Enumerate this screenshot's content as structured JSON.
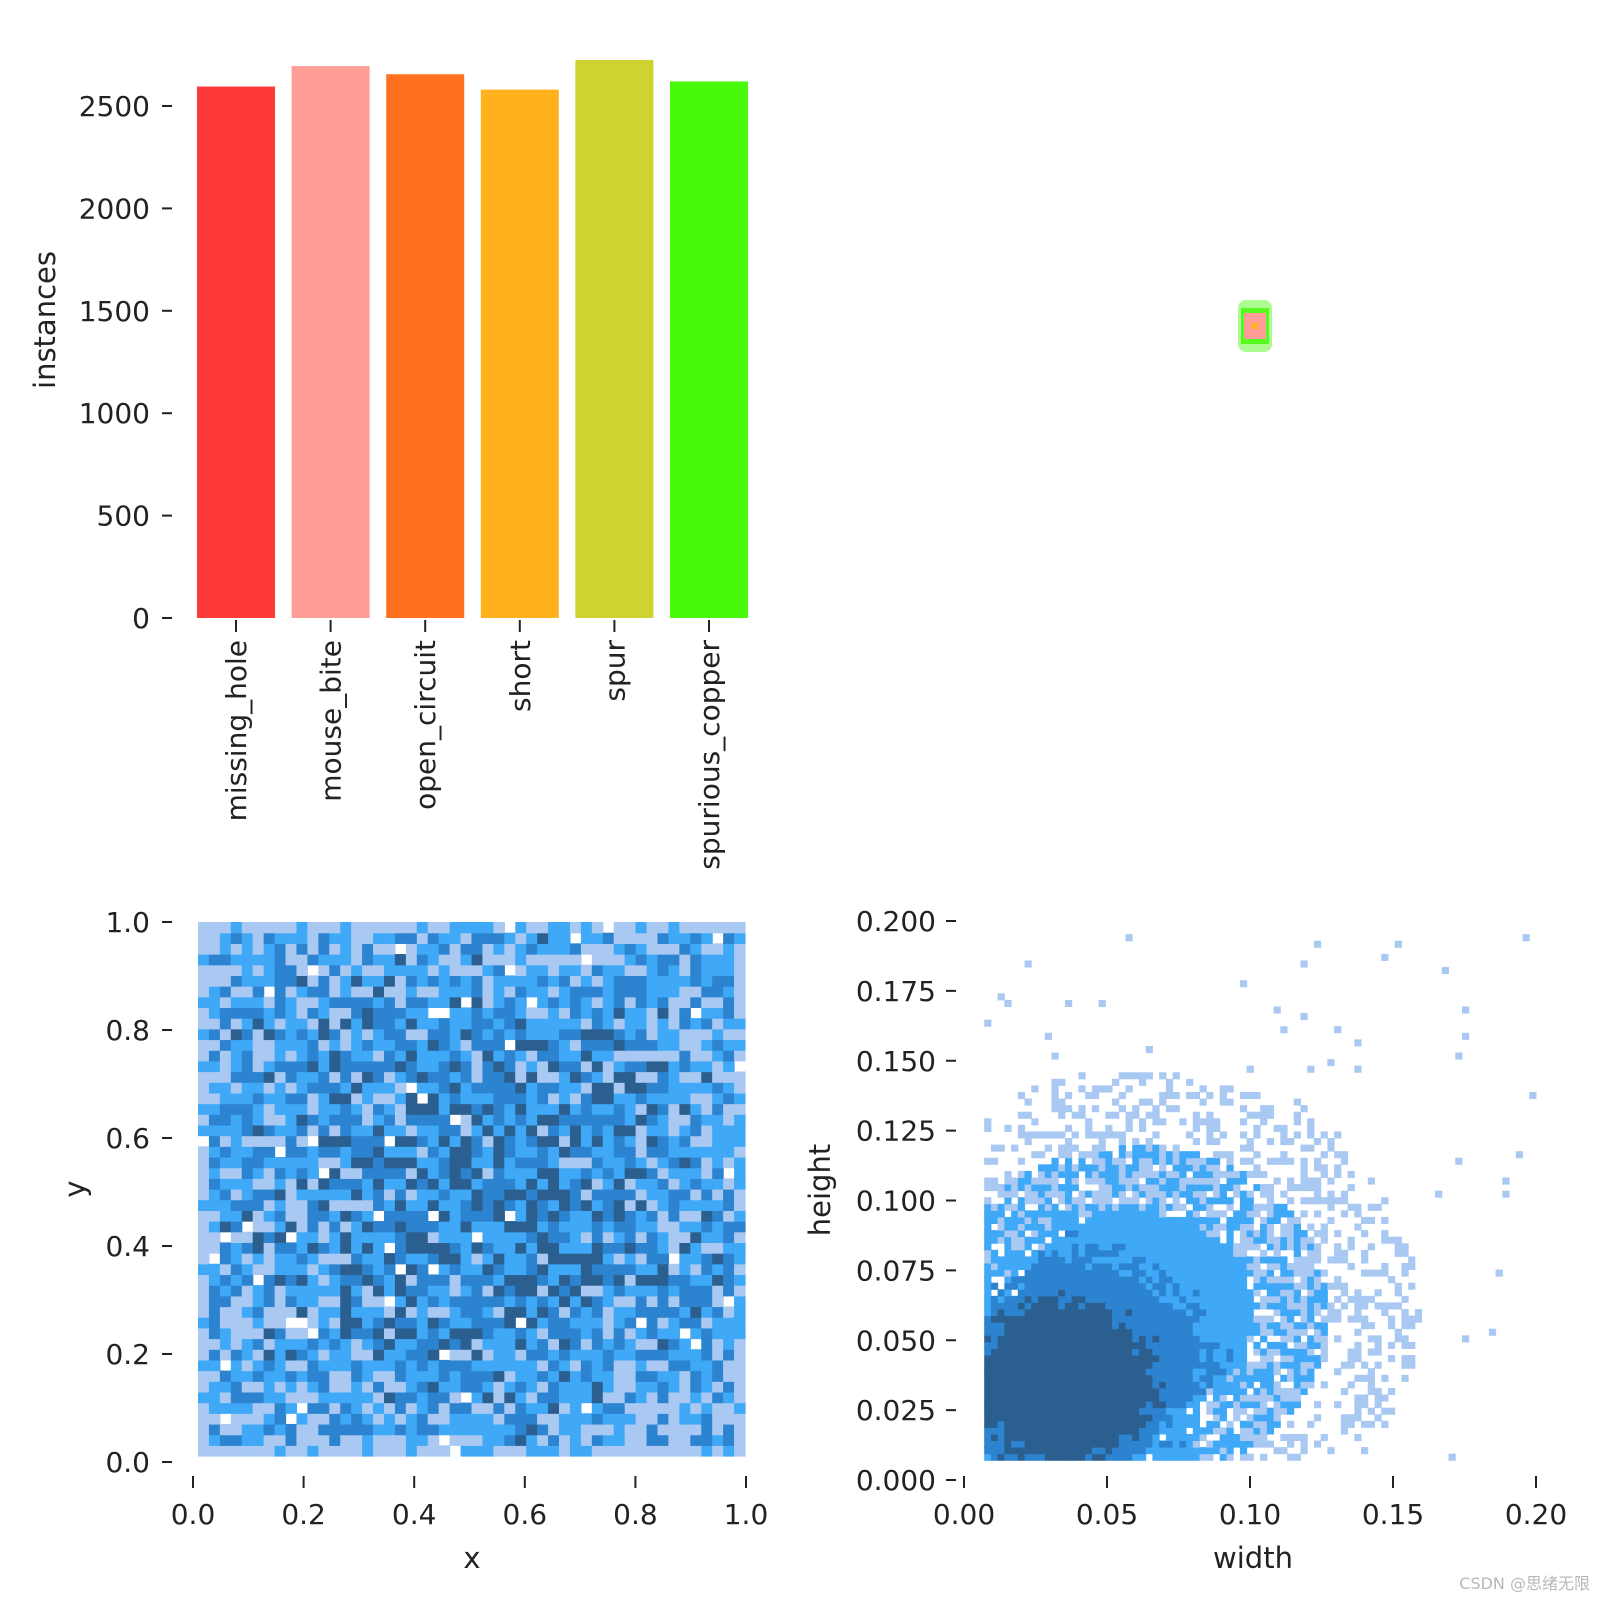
{
  "chart_data": [
    {
      "type": "bar",
      "ylabel": "instances",
      "ylim": [
        0,
        2750
      ],
      "yticks": [
        "0",
        "500",
        "1000",
        "1500",
        "2000",
        "2500"
      ],
      "categories": [
        "missing_hole",
        "mouse_bite",
        "open_circuit",
        "short",
        "spur",
        "spurious_copper"
      ],
      "values": [
        2595,
        2695,
        2655,
        2580,
        2725,
        2620
      ],
      "colors": [
        "#ff3838",
        "#ff9d97",
        "#ff701f",
        "#ffb21d",
        "#cfd231",
        "#48f90a"
      ]
    },
    {
      "type": "scatter",
      "title": "",
      "center": {
        "x": 0.5,
        "y": 0.5
      },
      "box_colors": [
        "#48f90a",
        "#ff9d97",
        "#ffb21d"
      ]
    },
    {
      "type": "heatmap",
      "xlabel": "x",
      "ylabel": "y",
      "xlim": [
        0,
        1
      ],
      "ylim": [
        0,
        1
      ],
      "xticks": [
        "0.0",
        "0.2",
        "0.4",
        "0.6",
        "0.8",
        "1.0"
      ],
      "yticks": [
        "0.0",
        "0.2",
        "0.4",
        "0.6",
        "0.8",
        "1.0"
      ],
      "bins": 50,
      "distribution": "approximately uniform over [0,1]x[0,1], slightly denser at center",
      "colors": [
        "#a9c9f3",
        "#3fa8f7",
        "#2c83d0",
        "#2b5f8f"
      ]
    },
    {
      "type": "heatmap",
      "xlabel": "width",
      "ylabel": "height",
      "xlim": [
        0,
        0.2
      ],
      "ylim": [
        0,
        0.2
      ],
      "xticks": [
        "0.00",
        "0.05",
        "0.10",
        "0.15",
        "0.20"
      ],
      "yticks": [
        "0.000",
        "0.025",
        "0.050",
        "0.075",
        "0.100",
        "0.125",
        "0.150",
        "0.175",
        "0.200"
      ],
      "peak": {
        "width": 0.035,
        "height": 0.035
      },
      "distribution": "concentrated near width 0.02-0.06, height 0.02-0.05, sparse tail to width 0.2, height 0.2",
      "colors": [
        "#a9c9f3",
        "#3fa8f7",
        "#2c83d0",
        "#2b5f8f"
      ]
    }
  ],
  "watermark": "CSDN @思绪无限"
}
